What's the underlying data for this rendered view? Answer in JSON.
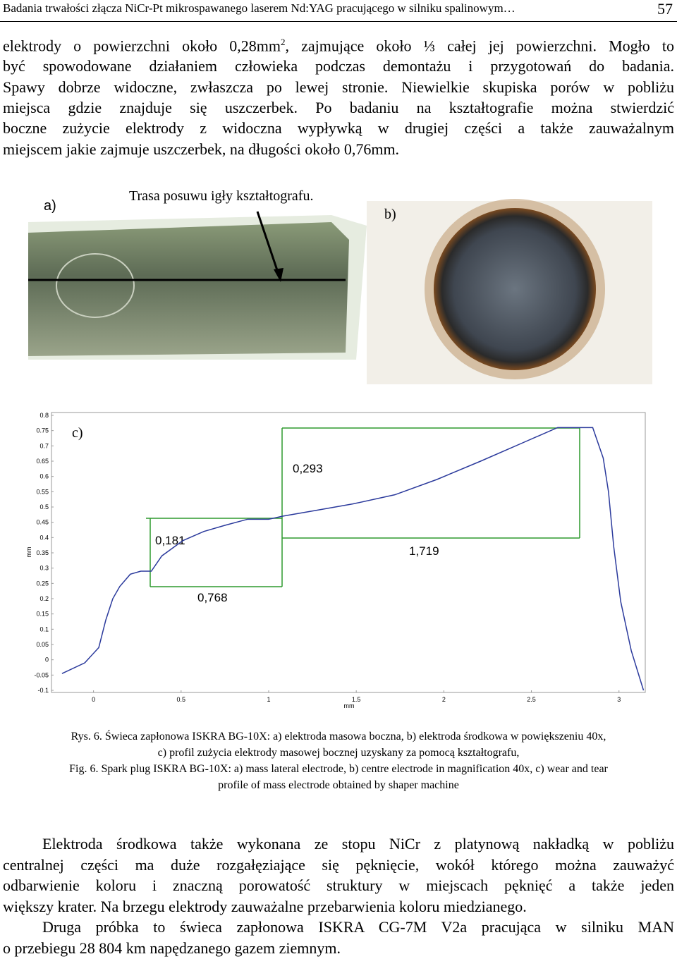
{
  "header": {
    "title": "Badania trwałości złącza NiCr-Pt mikrospawanego laserem Nd:YAG pracującego w silniku spalinowym…",
    "page": "57"
  },
  "paragraph1": {
    "first_line": [
      "elektrody o powierzchni około 0,28mm",
      "2",
      ", zajmujące około ⅓ całej jej powierzchni. Mogło to"
    ],
    "lines": [
      "być spowodowane działaniem człowieka podczas demontażu i przygotowań do badania.",
      "Spawy dobrze widoczne, zwłaszcza po lewej stronie. Niewielkie skupiska porów w pobliżu",
      "miejsca gdzie znajduje się uszczerbek. Po badaniu na kształtografie można stwierdzić",
      "boczne zużycie elektrody z widoczna wypływką w drugiej części a także zauważalnym",
      "miejscem jakie zajmuje uszczerbek, na długości około 0,76mm."
    ]
  },
  "figure": {
    "label_a": "a)",
    "label_b": "b)",
    "annotation": "Trasa posuwu igły kształtografu."
  },
  "chart_data": {
    "type": "line",
    "panel_label": "c)",
    "xlabel": "mm",
    "ylabel": "mm",
    "grid": false,
    "color": "#2b3a9c",
    "x": [
      -0.18,
      -0.05,
      0.03,
      0.07,
      0.11,
      0.15,
      0.21,
      0.27,
      0.33,
      0.39,
      0.51,
      0.63,
      0.75,
      0.88,
      1.0,
      1.08,
      1.28,
      1.48,
      1.72,
      1.96,
      2.21,
      2.45,
      2.65,
      2.77,
      2.85,
      2.91,
      2.94,
      2.97,
      3.01,
      3.07,
      3.14
    ],
    "values": [
      -0.045,
      -0.01,
      0.04,
      0.13,
      0.2,
      0.24,
      0.28,
      0.29,
      0.29,
      0.34,
      0.39,
      0.42,
      0.44,
      0.46,
      0.46,
      0.47,
      0.49,
      0.51,
      0.54,
      0.59,
      0.65,
      0.71,
      0.76,
      0.76,
      0.76,
      0.66,
      0.55,
      0.37,
      0.19,
      0.03,
      -0.1
    ],
    "xlim": [
      -0.24,
      3.15
    ],
    "ylim": [
      -0.1,
      0.8
    ],
    "xticks": [
      0,
      0.5,
      1,
      1.5,
      2,
      2.5,
      3
    ],
    "yticks": [
      0.8,
      0.75,
      0.7,
      0.65,
      0.6,
      0.55,
      0.5,
      0.45,
      0.4,
      0.35,
      0.3,
      0.25,
      0.2,
      0.15,
      0.1,
      0.05,
      0,
      -0.05,
      -0.1
    ],
    "annotations": [
      "0,293",
      "0,181",
      "1,719",
      "0,768"
    ]
  },
  "caption": {
    "lines": [
      "Rys. 6. Świeca zapłonowa ISKRA BG-10X: a) elektroda masowa boczna, b) elektroda środkowa w powiększeniu 40x,",
      "c) profil zużycia elektrody masowej bocznej uzyskany za pomocą kształtografu,",
      "Fig. 6. Spark plug ISKRA BG-10X: a)  mass lateral electrode, b) centre electrode in magnification 40x, c) wear and tear",
      "profile of mass electrode obtained by shaper machine"
    ]
  },
  "paragraph2": {
    "lines": [
      "Elektroda środkowa także wykonana ze stopu NiCr z platynową nakładką w pobliżu",
      "centralnej części ma duże rozgałęziające się pęknięcie, wokół którego można zauważyć",
      "odbarwienie koloru i znaczną porowatość struktury w miejscach pęknięć a także jeden",
      "większy krater. Na brzegu elektrody zauważalne przebarwienia koloru miedzianego.",
      "Druga próbka to świeca zapłonowa ISKRA CG-7M V2a pracująca w silniku MAN",
      "o przebiegu 28 804 km napędzanego gazem ziemnym."
    ]
  }
}
